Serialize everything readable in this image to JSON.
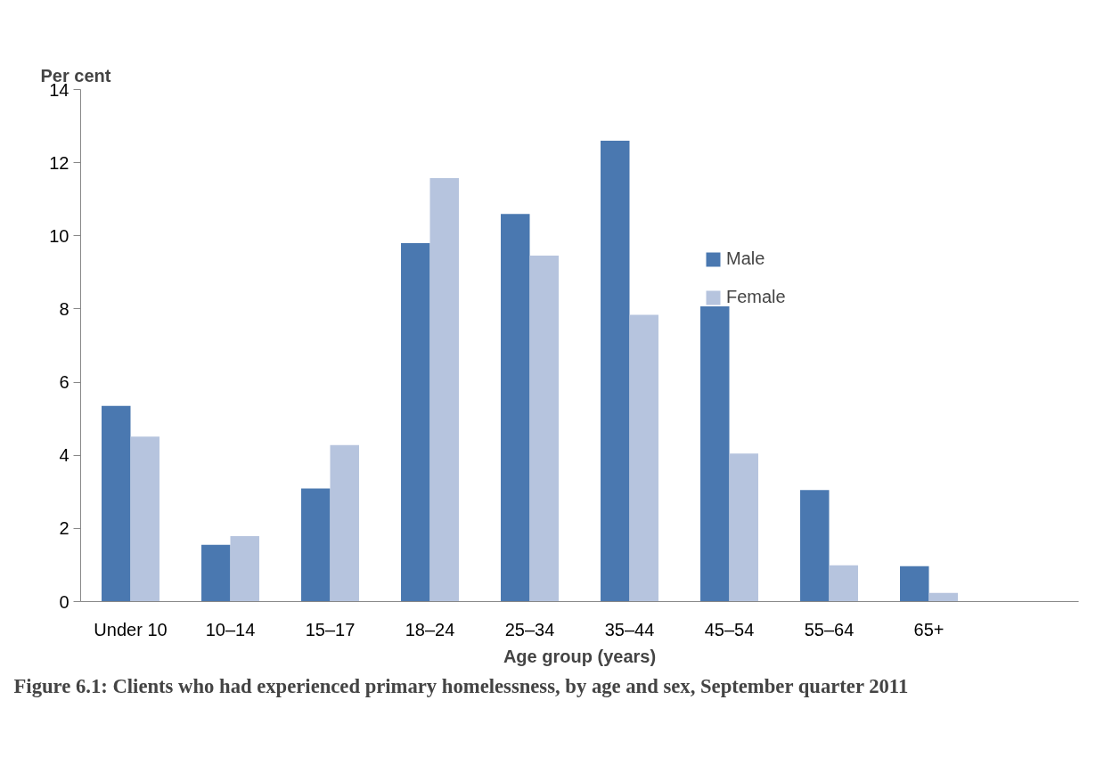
{
  "chart_data": {
    "type": "bar",
    "title": "Figure 6.1: Clients who had experienced primary homelessness, by age and sex, September quarter 2011",
    "ylabel": "Per cent",
    "xlabel": "Age group (years)",
    "categories": [
      "Under 10",
      "10–14",
      "15–17",
      "18–24",
      "25–34",
      "35–44",
      "45–54",
      "55–64",
      "65+",
      null
    ],
    "series": [
      {
        "name": "Male",
        "color": "#4a78b0",
        "values": [
          5.35,
          1.55,
          3.09,
          9.8,
          10.6,
          12.6,
          8.07,
          3.05,
          0.97,
          null
        ]
      },
      {
        "name": "Female",
        "color": "#b6c4de",
        "values": [
          4.51,
          1.79,
          4.28,
          11.58,
          9.46,
          7.84,
          4.05,
          0.99,
          0.24,
          null
        ]
      }
    ],
    "ylim": [
      0,
      14
    ],
    "yticks": [
      0,
      2,
      4,
      6,
      8,
      10,
      12,
      14
    ],
    "grid": false,
    "legend": "right"
  }
}
